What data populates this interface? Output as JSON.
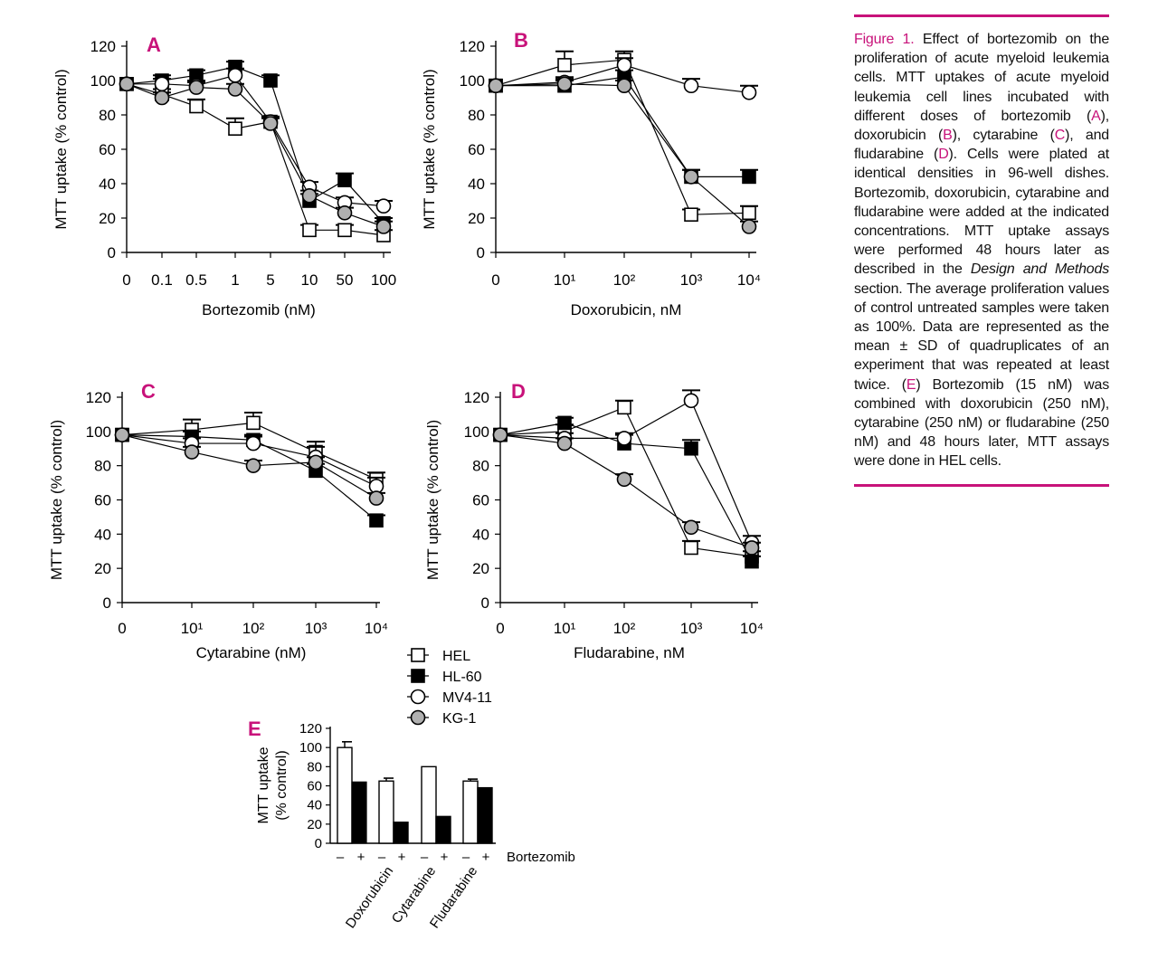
{
  "figure_title": "Figure 1.",
  "caption_parts": [
    {
      "t": "Effect of bortezomib on the proliferation of acute myeloid leukemia cells. MTT uptakes of acute myeloid leukemia cell lines incubated with different doses of bortezomib (",
      "hl": false
    },
    {
      "t": "A",
      "hl": true
    },
    {
      "t": "), doxorubicin (",
      "hl": false
    },
    {
      "t": "B",
      "hl": true
    },
    {
      "t": "), cytarabine (",
      "hl": false
    },
    {
      "t": "C",
      "hl": true
    },
    {
      "t": "), and fludarabine (",
      "hl": false
    },
    {
      "t": "D",
      "hl": true
    },
    {
      "t": "). Cells were plated at identical densities in 96-well dishes. Bortezomib, doxorubicin, cytarabine and fludarabine were added at the indicated concentrations. MTT uptake assays were performed 48 hours later as described in the ",
      "hl": false
    },
    {
      "t": "Design and Methods",
      "hl": false,
      "it": true
    },
    {
      "t": " section. The average proliferation values of control untreated samples were taken as 100%. Data are represented as the mean ± SD of quadruplicates of an experiment that was repeated at least twice. (",
      "hl": false
    },
    {
      "t": "E",
      "hl": true
    },
    {
      "t": ") Bortezomib (15 nM) was combined with doxorubicin (250 nM), cytarabine (250 nM) or fludarabine (250 nM) and 48 hours later, MTT assays were done in HEL cells.",
      "hl": false
    }
  ],
  "colors": {
    "accent": "#c8127a",
    "hel": "#ffffff",
    "hl60": "#000000",
    "mv411": "#ffffff",
    "kg1": "#b0b0b0"
  },
  "legend": [
    {
      "name": "HEL",
      "marker": "square",
      "fill": "#ffffff"
    },
    {
      "name": "HL-60",
      "marker": "square",
      "fill": "#000000"
    },
    {
      "name": "MV4-11",
      "marker": "circle",
      "fill": "#ffffff"
    },
    {
      "name": "KG-1",
      "marker": "circle",
      "fill": "#b0b0b0"
    }
  ],
  "chart_data": [
    {
      "panel": "A",
      "type": "line",
      "xlabel": "Bortezomib (nM)",
      "ylabel": "MTT uptake (% control)",
      "ylim": [
        0,
        120
      ],
      "yticks": [
        "0",
        "20",
        "40",
        "60",
        "80",
        "100",
        "120"
      ],
      "categories": [
        "0",
        "0.1",
        "0.5",
        "1",
        "5",
        "10",
        "50",
        "100"
      ],
      "series": [
        {
          "name": "HEL",
          "values": [
            98,
            92,
            85,
            72,
            76,
            13,
            13,
            10
          ],
          "err": [
            0,
            3,
            4,
            6,
            3,
            3,
            3,
            3
          ]
        },
        {
          "name": "HL-60",
          "values": [
            98,
            100,
            103,
            108,
            100,
            30,
            42,
            17
          ],
          "err": [
            0,
            3,
            3,
            3,
            3,
            4,
            4,
            3
          ]
        },
        {
          "name": "MV4-11",
          "values": [
            98,
            98,
            97,
            103,
            76,
            38,
            29,
            27
          ],
          "err": [
            0,
            3,
            3,
            4,
            3,
            3,
            3,
            3
          ]
        },
        {
          "name": "KG-1",
          "values": [
            98,
            90,
            96,
            95,
            75,
            33,
            23,
            15
          ],
          "err": [
            0,
            3,
            3,
            3,
            3,
            3,
            3,
            3
          ]
        }
      ]
    },
    {
      "panel": "B",
      "type": "line",
      "xlabel": "Doxorubicin, nM",
      "ylabel": "MTT uptake (% control)",
      "ylim": [
        0,
        120
      ],
      "yticks": [
        "0",
        "20",
        "40",
        "60",
        "80",
        "100",
        "120"
      ],
      "categories": [
        "0",
        "10¹",
        "10²",
        "10³",
        "10⁴"
      ],
      "series": [
        {
          "name": "HEL",
          "values": [
            97,
            109,
            112,
            22,
            23
          ],
          "err": [
            0,
            8,
            5,
            3,
            4
          ]
        },
        {
          "name": "HL-60",
          "values": [
            97,
            97,
            102,
            44,
            44
          ],
          "err": [
            0,
            3,
            4,
            4,
            4
          ]
        },
        {
          "name": "MV4-11",
          "values": [
            97,
            99,
            109,
            97,
            93
          ],
          "err": [
            0,
            3,
            4,
            4,
            4
          ]
        },
        {
          "name": "KG-1",
          "values": [
            97,
            98,
            97,
            44,
            15
          ],
          "err": [
            0,
            3,
            3,
            4,
            3
          ]
        }
      ]
    },
    {
      "panel": "C",
      "type": "line",
      "xlabel": "Cytarabine (nM)",
      "ylabel": "MTT uptake (% control)",
      "ylim": [
        0,
        120
      ],
      "yticks": [
        "0",
        "20",
        "40",
        "60",
        "80",
        "100",
        "120"
      ],
      "categories": [
        "0",
        "10¹",
        "10²",
        "10³",
        "10⁴"
      ],
      "series": [
        {
          "name": "HEL",
          "values": [
            98,
            101,
            105,
            88,
            72
          ],
          "err": [
            0,
            6,
            6,
            6,
            4
          ]
        },
        {
          "name": "HL-60",
          "values": [
            98,
            97,
            95,
            77,
            48
          ],
          "err": [
            0,
            3,
            3,
            4,
            3
          ]
        },
        {
          "name": "MV4-11",
          "values": [
            98,
            93,
            93,
            85,
            68
          ],
          "err": [
            0,
            3,
            4,
            6,
            5
          ]
        },
        {
          "name": "KG-1",
          "values": [
            98,
            88,
            80,
            82,
            61
          ],
          "err": [
            0,
            3,
            3,
            3,
            3
          ]
        }
      ]
    },
    {
      "panel": "D",
      "type": "line",
      "xlabel": "Fludarabine, nM",
      "ylabel": "MTT uptake (% control)",
      "ylim": [
        0,
        120
      ],
      "yticks": [
        "0",
        "20",
        "40",
        "60",
        "80",
        "100",
        "120"
      ],
      "categories": [
        "0",
        "10¹",
        "10²",
        "10³",
        "10⁴"
      ],
      "series": [
        {
          "name": "HEL",
          "values": [
            98,
            100,
            114,
            32,
            27
          ],
          "err": [
            0,
            4,
            4,
            4,
            3
          ]
        },
        {
          "name": "HL-60",
          "values": [
            98,
            105,
            93,
            90,
            24
          ],
          "err": [
            0,
            3,
            5,
            5,
            3
          ]
        },
        {
          "name": "MV4-11",
          "values": [
            98,
            96,
            96,
            118,
            35
          ],
          "err": [
            0,
            3,
            3,
            6,
            4
          ]
        },
        {
          "name": "KG-1",
          "values": [
            98,
            93,
            72,
            44,
            32
          ],
          "err": [
            0,
            3,
            3,
            3,
            3
          ]
        }
      ]
    },
    {
      "panel": "E",
      "type": "bar",
      "ylabel": "MTT uptake (% control)",
      "ylim": [
        0,
        120
      ],
      "yticks": [
        "0",
        "20",
        "40",
        "60",
        "80",
        "100",
        "120"
      ],
      "categories": [
        "Doxorubicin",
        "Cytarabine",
        "Fludarabine"
      ],
      "control": {
        "value": 100,
        "err": 6
      },
      "series": [
        {
          "name": "– Bortezomib",
          "fill": "#ffffff",
          "values": [
            65,
            80,
            65
          ],
          "err": [
            3,
            0,
            2
          ]
        },
        {
          "name": "+ Bortezomib",
          "fill": "#000000",
          "values": [
            22,
            28,
            58
          ],
          "err": [
            0,
            0,
            0
          ]
        }
      ],
      "treatment_label": "Bortezomib",
      "minus": "–",
      "plus": "+"
    }
  ]
}
